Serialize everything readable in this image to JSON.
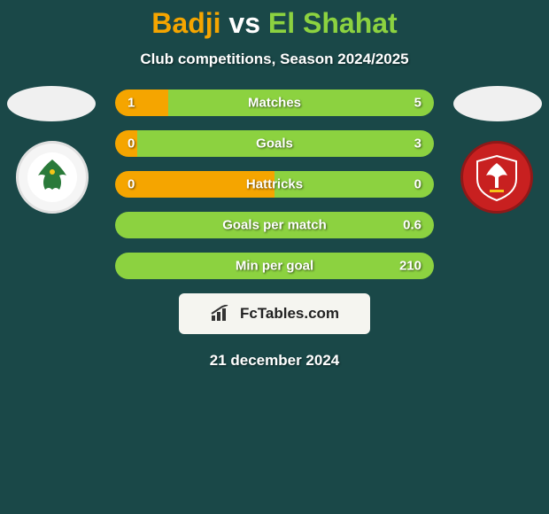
{
  "colors": {
    "background": "#1a4848",
    "title_left": "#f5a500",
    "title_vs": "#ffffff",
    "title_right": "#8cd240",
    "subtitle": "#ffffff",
    "bar_left": "#f5a500",
    "bar_right": "#8cd240",
    "bar_text": "#ffffff",
    "bar_label": "#ffffff",
    "player_oval": "#f0f0f0",
    "brand_bg": "#f5f5f0",
    "brand_text": "#222222",
    "date_text": "#ffffff"
  },
  "title": {
    "left": "Badji",
    "vs": "vs",
    "right": "El Shahat"
  },
  "subtitle": "Club competitions, Season 2024/2025",
  "stats": [
    {
      "label": "Matches",
      "left_val": "1",
      "right_val": "5",
      "left_pct": 16.7,
      "right_pct": 83.3
    },
    {
      "label": "Goals",
      "left_val": "0",
      "right_val": "3",
      "left_pct": 7,
      "right_pct": 93
    },
    {
      "label": "Hattricks",
      "left_val": "0",
      "right_val": "0",
      "left_pct": 50,
      "right_pct": 50
    },
    {
      "label": "Goals per match",
      "left_val": "",
      "right_val": "0.6",
      "left_pct": 0,
      "right_pct": 100
    },
    {
      "label": "Min per goal",
      "left_val": "",
      "right_val": "210",
      "left_pct": 0,
      "right_pct": 100
    }
  ],
  "brand": "FcTables.com",
  "date": "21 december 2024",
  "club_left": {
    "eagle_color": "#2a7a3a",
    "inner_bg": "#ffffff"
  },
  "club_right": {
    "eagle_color": "#ffffff",
    "shield_color": "#c82020",
    "accent": "#f5c518"
  }
}
